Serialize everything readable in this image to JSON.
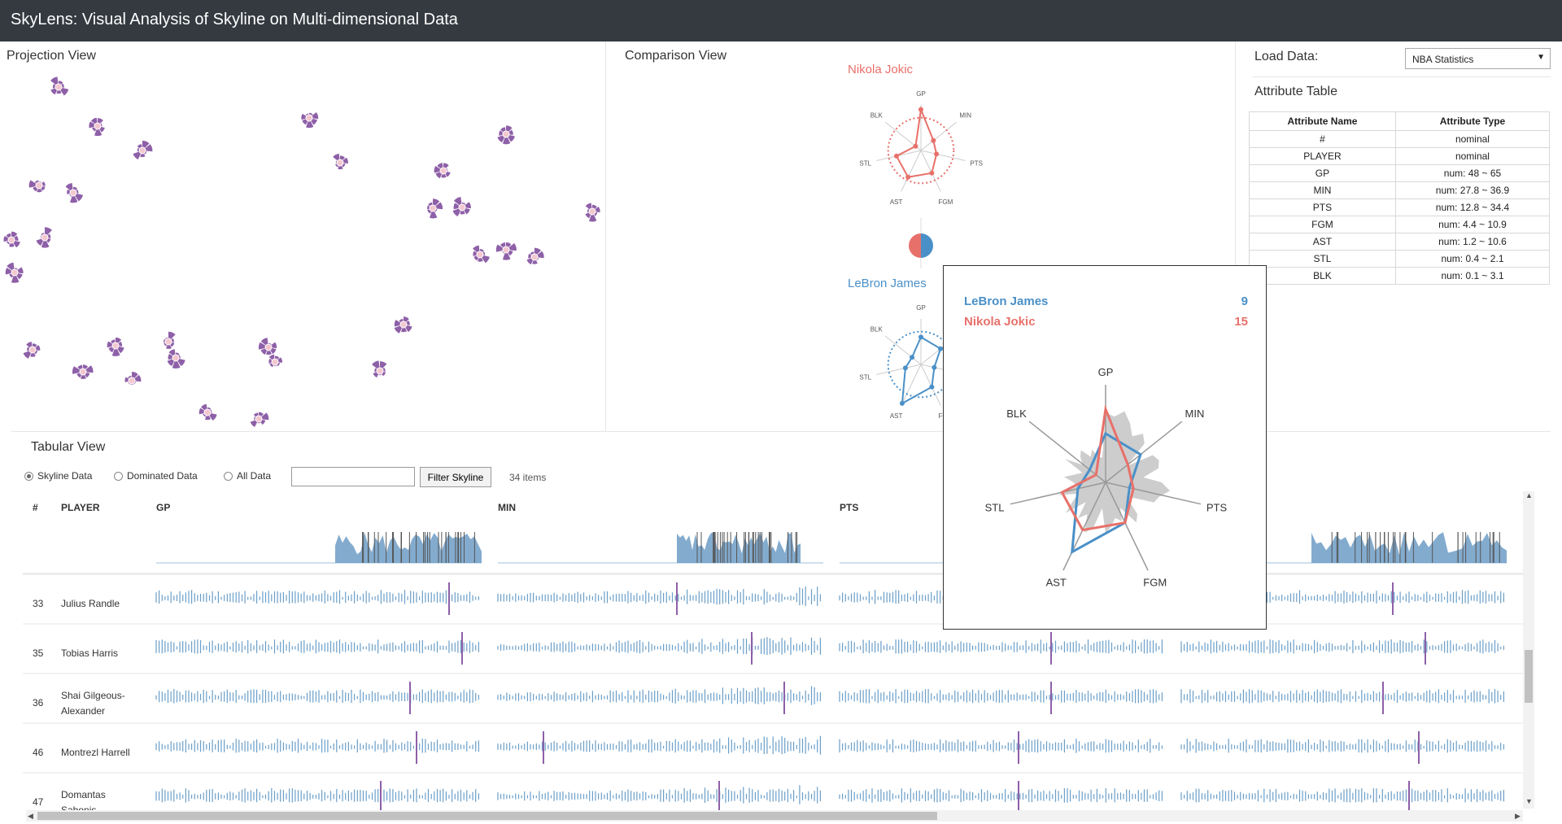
{
  "app": {
    "title": "SkyLens: Visual Analysis of Skyline on Multi-dimensional Data"
  },
  "views": {
    "projection": "Projection View",
    "comparison": "Comparison View",
    "tabular": "Tabular View"
  },
  "load": {
    "label": "Load Data:",
    "selected": "NBA Statistics"
  },
  "attribute_table": {
    "title": "Attribute Table",
    "headers": [
      "Attribute Name",
      "Attribute Type"
    ],
    "rows": [
      [
        "#",
        "nominal"
      ],
      [
        "PLAYER",
        "nominal"
      ],
      [
        "GP",
        "num: 48 ~ 65"
      ],
      [
        "MIN",
        "num: 27.8 ~ 36.9"
      ],
      [
        "PTS",
        "num: 12.8 ~ 34.4"
      ],
      [
        "FGM",
        "num: 4.4 ~ 10.9"
      ],
      [
        "AST",
        "num: 1.2 ~ 10.6"
      ],
      [
        "STL",
        "num: 0.4 ~ 2.1"
      ],
      [
        "BLK",
        "num: 0.1 ~ 3.1"
      ]
    ]
  },
  "comparison": {
    "player_a": "Nikola Jokic",
    "player_b": "LeBron James",
    "axes": [
      "GP",
      "MIN",
      "PTS",
      "FGM",
      "AST",
      "STL",
      "BLK"
    ],
    "player_a_values": [
      0.9,
      0.35,
      0.35,
      0.55,
      0.65,
      0.55,
      0.15
    ],
    "player_b_values": [
      0.6,
      0.55,
      0.3,
      0.55,
      0.95,
      0.35,
      0.25
    ],
    "colors": {
      "a": "#e8706a",
      "b": "#4a90c8"
    }
  },
  "tooltip": {
    "rows": [
      {
        "name": "LeBron James",
        "value": "9"
      },
      {
        "name": "Nikola Jokic",
        "value": "15"
      }
    ],
    "axes": [
      "GP",
      "MIN",
      "PTS",
      "FGM",
      "AST",
      "STL",
      "BLK"
    ]
  },
  "tabular": {
    "radios": [
      "Skyline Data",
      "Dominated Data",
      "All Data"
    ],
    "selected_radio": "Skyline Data",
    "filter_input": "",
    "filter_button": "Filter Skyline",
    "item_count": "34 items",
    "columns": [
      "#",
      "PLAYER",
      "GP",
      "MIN",
      "PTS"
    ],
    "rows": [
      {
        "id": "33",
        "player": [
          "Julius Randle"
        ],
        "marks": [
          0.9,
          0.55,
          0.5,
          0.65
        ]
      },
      {
        "id": "35",
        "player": [
          "Tobias Harris"
        ],
        "marks": [
          0.94,
          0.78,
          0.65,
          0.75
        ]
      },
      {
        "id": "36",
        "player": [
          "Shai Gilgeous-",
          "Alexander"
        ],
        "marks": [
          0.78,
          0.88,
          0.65,
          0.62
        ]
      },
      {
        "id": "46",
        "player": [
          "Montrezl Harrell"
        ],
        "marks": [
          0.8,
          0.14,
          0.55,
          0.73
        ]
      },
      {
        "id": "47",
        "player": [
          "Domantas",
          "Sabonis"
        ],
        "marks": [
          0.69,
          0.68,
          0.55,
          0.7
        ]
      }
    ]
  },
  "colors": {
    "titlebar": "#343a40",
    "glyph": "#8e60a8",
    "line": "#6a9ec8",
    "mark": "#8e60a8"
  }
}
